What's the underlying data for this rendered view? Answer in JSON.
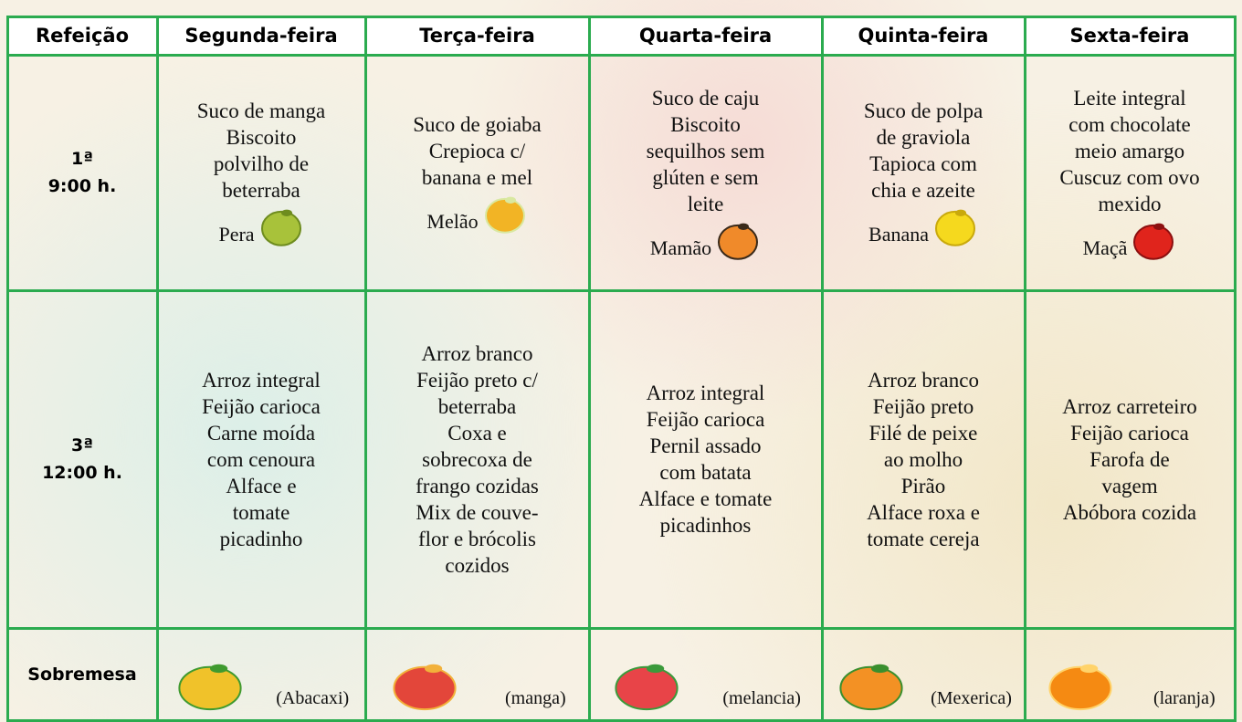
{
  "table": {
    "header": [
      "Refeição",
      "Segunda-feira",
      "Terça-feira",
      "Quarta-feira",
      "Quinta-feira",
      "Sexta-feira"
    ],
    "rows": [
      {
        "label": [
          "1ª",
          "9:00 h."
        ],
        "cells": [
          {
            "lines": [
              "Suco de manga",
              "Biscoito",
              "polvilho de",
              "beterraba"
            ],
            "fruit": "Pera"
          },
          {
            "lines": [
              "Suco de goiaba",
              "Crepioca c/",
              "banana e mel"
            ],
            "fruit": "Melão"
          },
          {
            "lines": [
              "Suco de caju",
              "Biscoito",
              "sequilhos sem",
              "glúten e sem",
              "leite"
            ],
            "fruit": "Mamão"
          },
          {
            "lines": [
              "Suco de polpa",
              "de graviola",
              "Tapioca com",
              "chia e azeite"
            ],
            "fruit": "Banana"
          },
          {
            "lines": [
              "Leite integral",
              "com chocolate",
              "meio amargo",
              "Cuscuz com ovo",
              "mexido"
            ],
            "fruit": "Maçã"
          }
        ]
      },
      {
        "label": [
          "3ª",
          "12:00 h."
        ],
        "cells": [
          {
            "lines": [
              "Arroz integral",
              "Feijão carioca",
              "Carne moída",
              "com cenoura",
              "Alface e",
              "tomate",
              "picadinho"
            ]
          },
          {
            "lines": [
              "Arroz branco",
              "Feijão preto c/",
              "beterraba",
              "Coxa e",
              "sobrecoxa de",
              "frango cozidas",
              "Mix de couve-",
              "flor e brócolis",
              "cozidos"
            ]
          },
          {
            "lines": [
              "Arroz integral",
              "Feijão carioca",
              "Pernil assado",
              "com batata",
              "Alface e tomate",
              "picadinhos"
            ]
          },
          {
            "lines": [
              "Arroz branco",
              "Feijão preto",
              "Filé de peixe",
              "ao molho",
              "Pirão",
              "Alface roxa e",
              "tomate cereja"
            ]
          },
          {
            "lines": [
              "Arroz carreteiro",
              "Feijão carioca",
              "Farofa de",
              "vagem",
              "Abóbora cozida"
            ]
          }
        ]
      },
      {
        "label": [
          "Sobremesa"
        ],
        "cells": [
          {
            "fruit": "(Abacaxi)"
          },
          {
            "fruit": "(manga)"
          },
          {
            "fruit": "(melancia)"
          },
          {
            "fruit": "(Mexerica)"
          },
          {
            "fruit": "(laranja)"
          }
        ]
      }
    ]
  }
}
